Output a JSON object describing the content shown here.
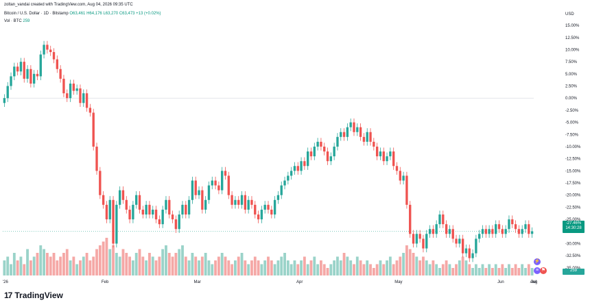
{
  "header": {
    "credit": "zoltan_vandai created with TradingView.com, Aug 04, 2026 09:35 UTC",
    "symbol": "Bitcoin / U.S. Dollar · 1D · Bitstamp",
    "ohlc_o": "O63,461",
    "ohlc_h": "H64,176",
    "ohlc_l": "L63,270",
    "ohlc_c": "C63,473",
    "change": "+13 (+0.02%)",
    "vol_label": "Vol · BTC",
    "vol_value": "259"
  },
  "axis": {
    "currency": "USD",
    "price_tag_pct": "-27.46%",
    "price_tag_time": "14:30:28",
    "vol_tag": "259"
  },
  "brand": {
    "name": "TradingView",
    "logo": "17"
  },
  "colors": {
    "up": "#26a69a",
    "down": "#ef5350",
    "vol_up": "#9ad3c9",
    "vol_down": "#f5a8a6",
    "zero_line": "#d1d4dc"
  },
  "chart_data": {
    "type": "candlestick",
    "y_unit": "% change",
    "y_ticks": [
      "15.00%",
      "12.50%",
      "10.00%",
      "7.50%",
      "5.00%",
      "2.50%",
      "0.00%",
      "-2.50%",
      "-5.00%",
      "-7.50%",
      "-10.00%",
      "-12.50%",
      "-15.00%",
      "-17.50%",
      "-20.00%",
      "-22.50%",
      "-25.00%",
      "-27.50%",
      "-30.00%",
      "-32.50%",
      "-35.00%"
    ],
    "y_tick_values": [
      15,
      12.5,
      10,
      7.5,
      5,
      2.5,
      0,
      -2.5,
      -5,
      -7.5,
      -10,
      -12.5,
      -15,
      -17.5,
      -20,
      -22.5,
      -25,
      -27.5,
      -30,
      -32.5,
      -35
    ],
    "x_labels": [
      "'26",
      "Feb",
      "Mar",
      "Apr",
      "May",
      "Jun",
      "Jul",
      "Aug"
    ],
    "x_label_dates": [
      "2026-01-01",
      "2026-02-01",
      "2026-03-01",
      "2026-04-01",
      "2026-05-01",
      "2026-06-01",
      "2026-07-01",
      "2026-08-01"
    ],
    "close": [
      0.0,
      2.5,
      4.5,
      6.5,
      5.5,
      7.5,
      4,
      6,
      3,
      5,
      4.5,
      9,
      11,
      10,
      9.5,
      8,
      6,
      4,
      1,
      0,
      3,
      1.5,
      2,
      -1,
      1,
      -2,
      -3,
      -10,
      -15,
      -20,
      -22,
      -25,
      -21,
      -30,
      -22,
      -19,
      -21,
      -23,
      -25,
      -22,
      -20,
      -23,
      -24,
      -22,
      -24,
      -23,
      -25,
      -26,
      -23,
      -21,
      -24,
      -25,
      -27,
      -24,
      -22,
      -24,
      -21,
      -17,
      -20,
      -19,
      -23,
      -21,
      -18,
      -17,
      -18,
      -19,
      -15,
      -16,
      -20,
      -22,
      -21,
      -22,
      -20,
      -23,
      -21,
      -22,
      -24,
      -25,
      -23,
      -22,
      -23,
      -24,
      -21,
      -20,
      -18,
      -17,
      -16,
      -15,
      -14,
      -15,
      -13,
      -14,
      -11,
      -12,
      -10,
      -9,
      -10,
      -11,
      -13,
      -12,
      -10,
      -8,
      -7,
      -8,
      -6,
      -5,
      -7,
      -6,
      -8,
      -9,
      -7,
      -9,
      -10,
      -12,
      -11,
      -13,
      -12,
      -11,
      -14,
      -15,
      -17,
      -16,
      -22,
      -28,
      -30,
      -28,
      -29,
      -31,
      -28,
      -27,
      -28,
      -26,
      -24,
      -26,
      -28,
      -27,
      -29,
      -30,
      -29,
      -32,
      -31,
      -33,
      -32,
      -29,
      -28,
      -27,
      -28,
      -27,
      -28,
      -26,
      -27,
      -28,
      -27,
      -25,
      -26,
      -27,
      -28,
      -27,
      -26,
      -28,
      -27.46
    ],
    "volume_rel": [
      0.4,
      0.5,
      0.3,
      0.6,
      0.4,
      0.5,
      0.3,
      0.7,
      0.4,
      0.5,
      0.6,
      0.8,
      0.7,
      0.6,
      0.5,
      0.6,
      0.4,
      0.5,
      0.6,
      0.7,
      0.4,
      0.5,
      0.3,
      0.4,
      0.5,
      0.6,
      0.4,
      0.5,
      0.7,
      0.8,
      0.9,
      1.0,
      0.7,
      0.8,
      0.6,
      0.5,
      0.7,
      0.6,
      0.5,
      0.4,
      0.6,
      0.7,
      0.5,
      0.4,
      0.6,
      0.5,
      0.4,
      0.5,
      0.7,
      0.8,
      0.6,
      0.5,
      0.6,
      0.7,
      0.8,
      0.5,
      0.4,
      0.6,
      0.5,
      0.4,
      0.5,
      0.6,
      0.4,
      0.3,
      0.4,
      0.5,
      0.6,
      0.5,
      0.4,
      0.3,
      0.4,
      0.5,
      0.6,
      0.4,
      0.3,
      0.4,
      0.5,
      0.4,
      0.3,
      0.4,
      0.5,
      0.4,
      0.3,
      0.4,
      0.5,
      0.6,
      0.4,
      0.3,
      0.4,
      0.3,
      0.4,
      0.5,
      0.3,
      0.4,
      0.5,
      0.3,
      0.4,
      0.3,
      0.2,
      0.3,
      0.4,
      0.5,
      0.4,
      0.6,
      0.5,
      0.4,
      0.3,
      0.5,
      0.4,
      0.3,
      0.4,
      0.3,
      0.2,
      0.3,
      0.4,
      0.3,
      0.4,
      0.5,
      0.3,
      0.4,
      0.5,
      0.6,
      0.8,
      0.7,
      0.6,
      0.5,
      0.4,
      0.5,
      0.4,
      0.3,
      0.4,
      0.3,
      0.2,
      0.3,
      0.4,
      0.3,
      0.2,
      0.3,
      0.4,
      0.5,
      0.4,
      0.3,
      0.2,
      0.3,
      0.2,
      0.3,
      0.2,
      0.3,
      0.2,
      0.3,
      0.2,
      0.3,
      0.2,
      0.3,
      0.2,
      0.3,
      0.2,
      0.3,
      0.2,
      0.3,
      0.2,
      0.3,
      0.2
    ],
    "ylim": [
      -37,
      16
    ],
    "grid": false,
    "legend": "none"
  }
}
